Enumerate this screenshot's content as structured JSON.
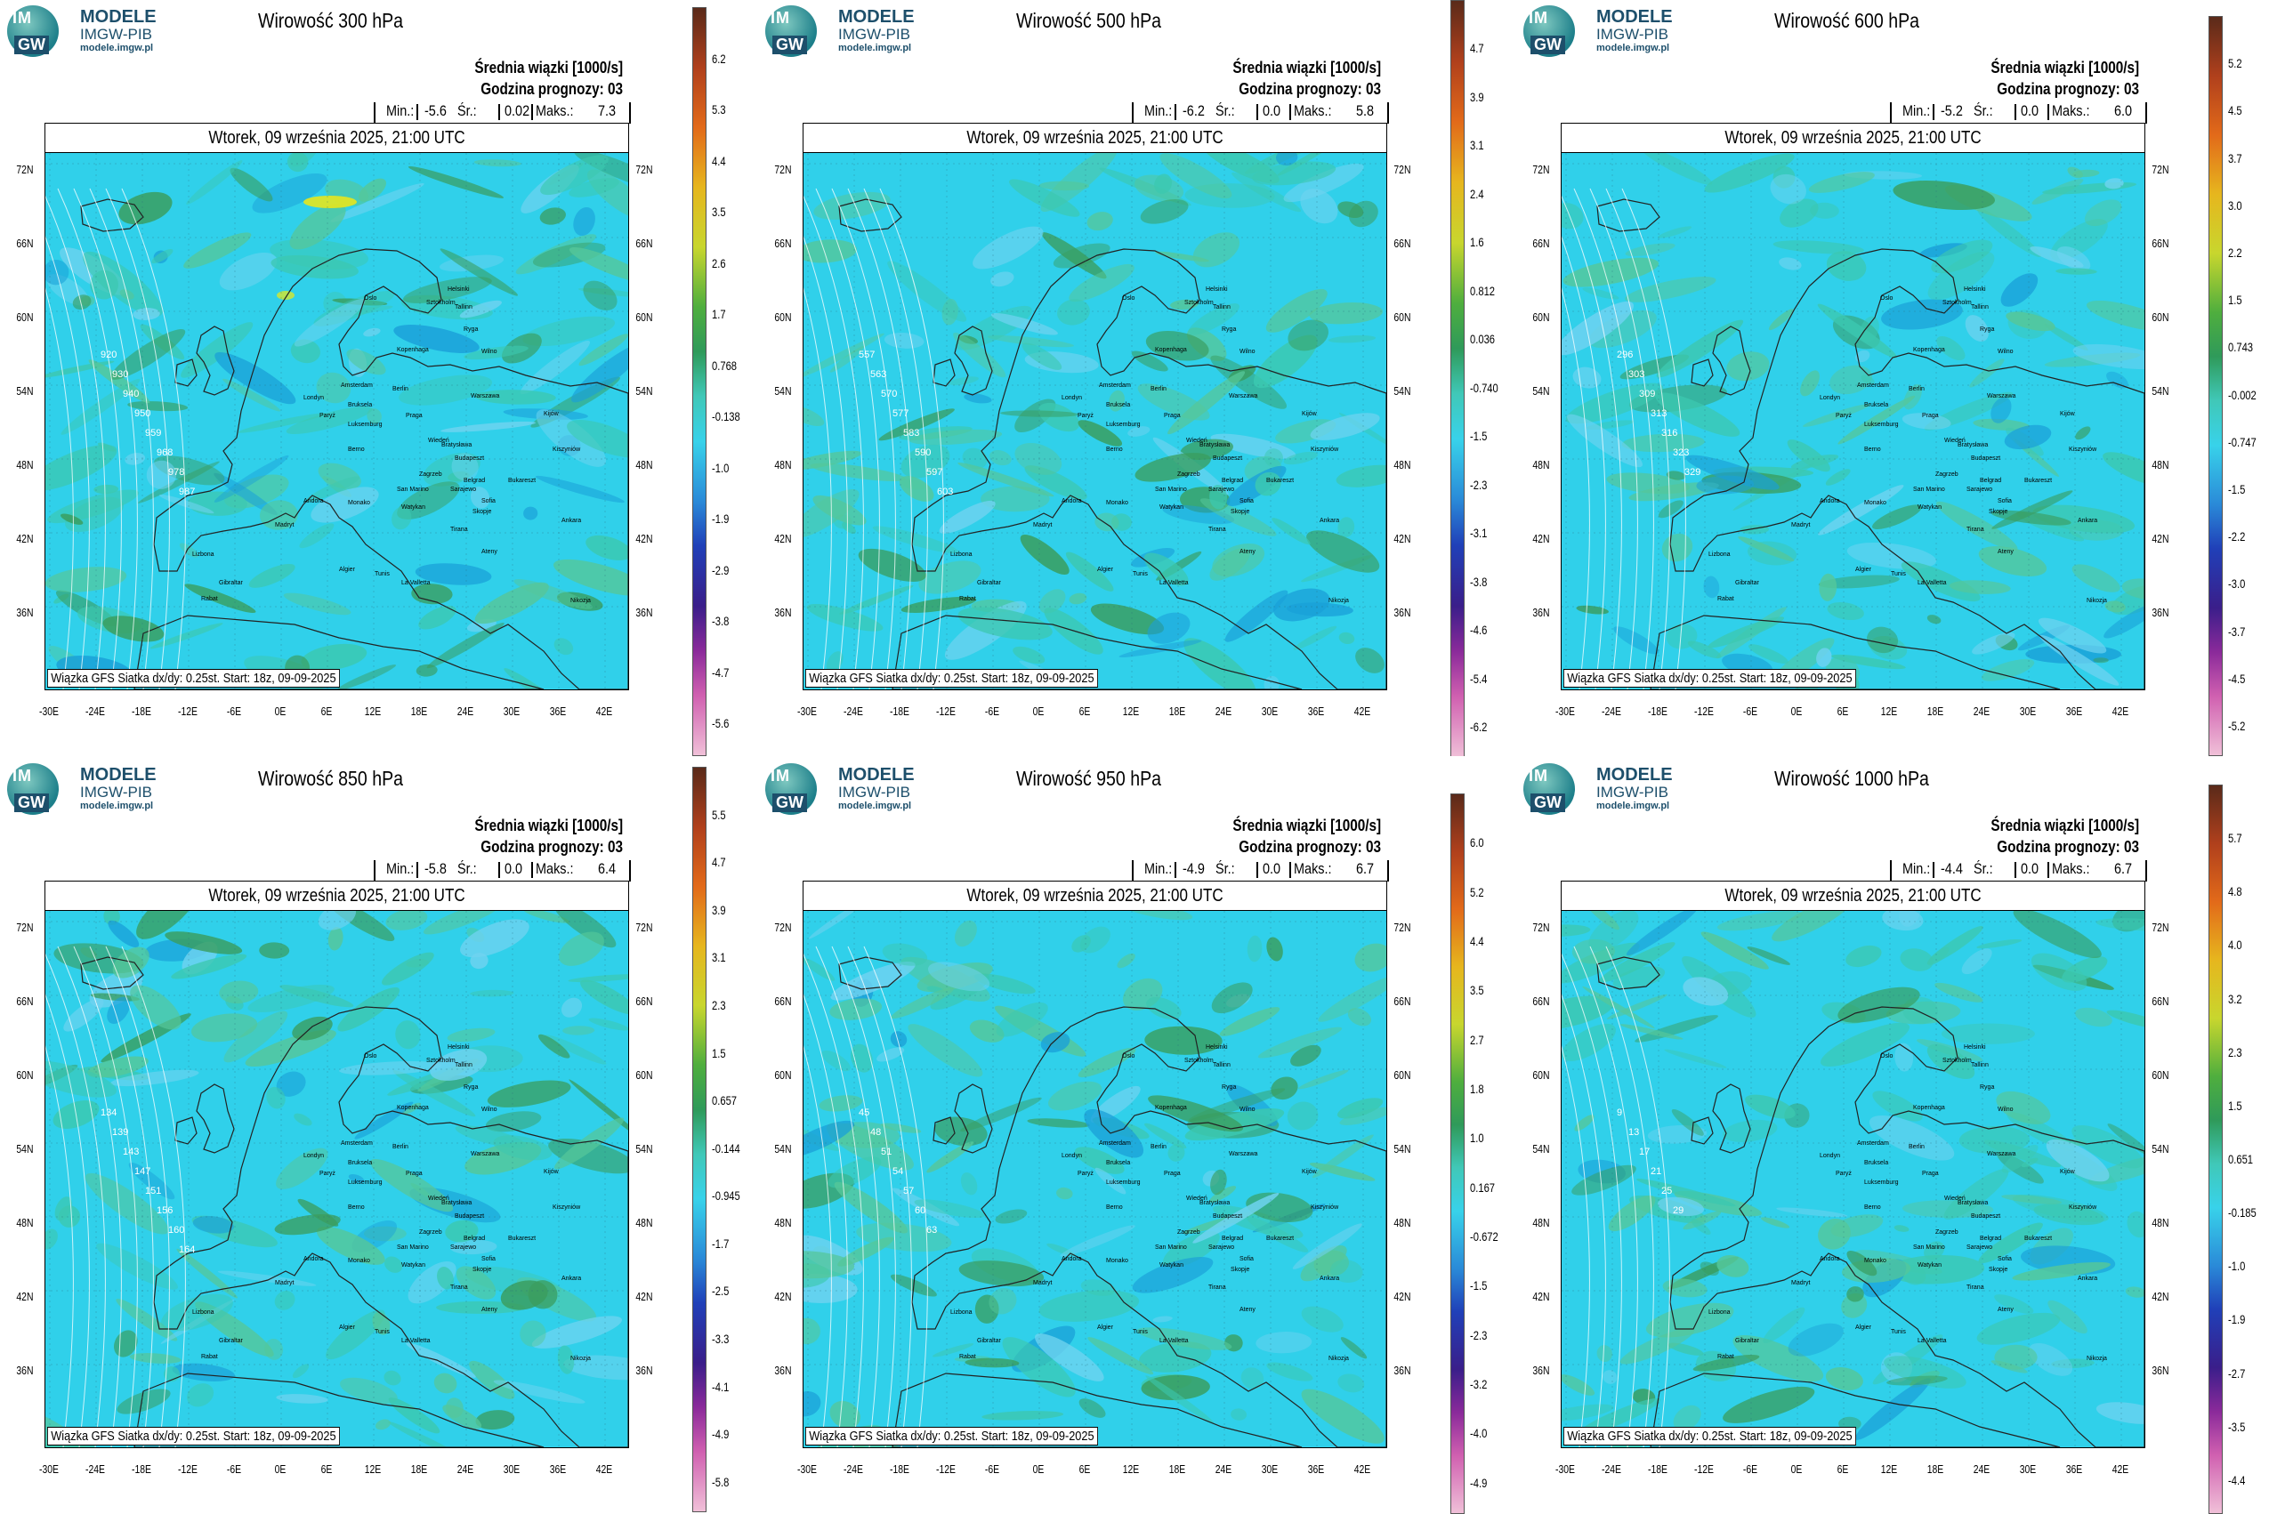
{
  "logo": {
    "line1": "MODELE",
    "line2": "IMGW-PIB",
    "line3": "modele.imgw.pl",
    "badge_top": "IM",
    "badge_bottom": "GW"
  },
  "common": {
    "info_title": "Średnia wiązki [1000/s]",
    "forecast_hour": "Godzina prognozy: 03",
    "date": "Wtorek, 09 września 2025, 21:00 UTC",
    "credit": "Wiązka GFS Siatka dx/dy: 0.25st. Start: 18z, 09-09-2025",
    "min_label": "Min.:",
    "mean_label": "Śr.:",
    "max_label": "Maks.:"
  },
  "lat_labels": [
    "72N",
    "66N",
    "60N",
    "54N",
    "48N",
    "42N",
    "36N"
  ],
  "lon_labels": [
    "-30E",
    "-24E",
    "-18E",
    "-12E",
    "-6E",
    "0E",
    "6E",
    "12E",
    "18E",
    "24E",
    "30E",
    "36E",
    "42E"
  ],
  "cities": [
    "Oslo",
    "Helsinki",
    "Sztokholm",
    "Tallinn",
    "Ryga",
    "Kopenhaga",
    "Wilno",
    "Amsterdam",
    "Berlin",
    "Warszawa",
    "Londyn",
    "Bruksela",
    "Praga",
    "Kijów",
    "Paryż",
    "Luksemburg",
    "Wiedeń",
    "Bratysława",
    "Berno",
    "Budapeszt",
    "Kiszyniów",
    "Zagrzeb",
    "Belgrad",
    "Bukareszt",
    "San Marino",
    "Sarajewo",
    "Andora",
    "Monako",
    "Watykan",
    "Sofia",
    "Skopje",
    "Tirana",
    "Ankara",
    "Madryt",
    "Ateny",
    "Lizbona",
    "Algier",
    "Tunis",
    "Gibraltar",
    "La Valletta",
    "Rabat",
    "Nikozja"
  ],
  "panels": [
    {
      "title": "Wirowość 300 hPa",
      "min": "-5.6",
      "mean": "0.02",
      "max": "7.3",
      "contours": [
        "920",
        "930",
        "940",
        "950",
        "959",
        "968",
        "978",
        "987"
      ],
      "cbar_ticks": [
        "6.2",
        "5.3",
        "4.4",
        "3.5",
        "2.6",
        "1.7",
        "0.768",
        "-0.138",
        "-1.0",
        "-1.9",
        "-2.9",
        "-3.8",
        "-4.7",
        "-5.6"
      ],
      "accent": "yellow"
    },
    {
      "title": "Wirowość 500 hPa",
      "min": "-6.2",
      "mean": "0.0",
      "max": "5.8",
      "contours": [
        "557",
        "563",
        "570",
        "577",
        "583",
        "590",
        "597",
        "603"
      ],
      "cbar_ticks": [
        "4.7",
        "3.9",
        "3.1",
        "2.4",
        "1.6",
        "0.812",
        "0.036",
        "-0.740",
        "-1.5",
        "-2.3",
        "-3.1",
        "-3.8",
        "-4.6",
        "-5.4",
        "-6.2"
      ],
      "accent": "green"
    },
    {
      "title": "Wirowość 600 hPa",
      "min": "-5.2",
      "mean": "0.0",
      "max": "6.0",
      "contours": [
        "296",
        "303",
        "309",
        "313",
        "316",
        "323",
        "329"
      ],
      "cbar_ticks": [
        "5.2",
        "4.5",
        "3.7",
        "3.0",
        "2.2",
        "1.5",
        "0.743",
        "-0.002",
        "-0.747",
        "-1.5",
        "-2.2",
        "-3.0",
        "-3.7",
        "-4.5",
        "-5.2"
      ],
      "accent": "green"
    },
    {
      "title": "Wirowość 850 hPa",
      "min": "-5.8",
      "mean": "0.0",
      "max": "6.4",
      "contours": [
        "134",
        "139",
        "143",
        "147",
        "151",
        "156",
        "160",
        "164"
      ],
      "cbar_ticks": [
        "5.5",
        "4.7",
        "3.9",
        "3.1",
        "2.3",
        "1.5",
        "0.657",
        "-0.144",
        "-0.945",
        "-1.7",
        "-2.5",
        "-3.3",
        "-4.1",
        "-4.9",
        "-5.8"
      ],
      "accent": "green"
    },
    {
      "title": "Wirowość 950 hPa",
      "min": "-4.9",
      "mean": "0.0",
      "max": "6.7",
      "contours": [
        "45",
        "48",
        "51",
        "54",
        "57",
        "60",
        "63"
      ],
      "cbar_ticks": [
        "6.0",
        "5.2",
        "4.4",
        "3.5",
        "2.7",
        "1.8",
        "1.0",
        "0.167",
        "-0.672",
        "-1.5",
        "-2.3",
        "-3.2",
        "-4.0",
        "-4.9"
      ],
      "accent": "green"
    },
    {
      "title": "Wirowość 1000 hPa",
      "min": "-4.4",
      "mean": "0.0",
      "max": "6.7",
      "contours": [
        "9",
        "13",
        "17",
        "21",
        "25",
        "29"
      ],
      "cbar_ticks": [
        "5.7",
        "4.8",
        "4.0",
        "3.2",
        "2.3",
        "1.5",
        "0.651",
        "-0.185",
        "-1.0",
        "-1.9",
        "-2.7",
        "-3.5",
        "-4.4"
      ],
      "accent": "green"
    }
  ]
}
